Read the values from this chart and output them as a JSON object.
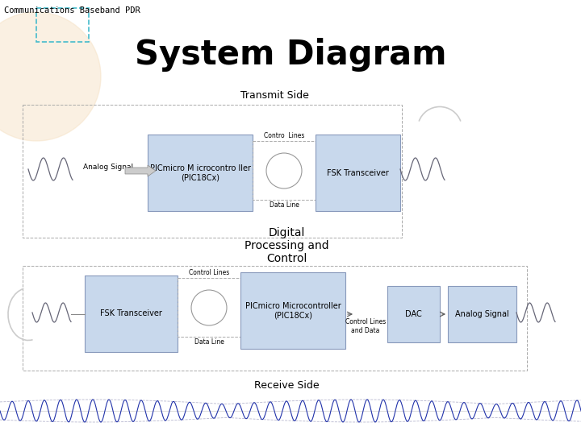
{
  "title": "System Diagram",
  "header_text": "Communications Baseband PDR",
  "bg_color": "#ffffff",
  "box_fill": "#c8d8ec",
  "box_edge": "#8899bb",
  "signal_color": "#2233aa",
  "wave_color": "#aaaacc",
  "transmit_label": "Transmit Side",
  "receive_label": "Receive Side",
  "digital_label": "Digital\nProcessing and\nControl",
  "tx_pic_label": "PICmicro M icrocontro ller\n(PIC18Cx)",
  "tx_fsk_label": "FSK Transceiver",
  "rx_fsk_label": "FSK Transceiver",
  "rx_pic_label": "PICmicro Microcontroller\n(PIC18Cx)",
  "rx_dac_label": "DAC",
  "rx_analog_label": "Analog Signal",
  "control_lines_label": "Contro  Lines",
  "data_line_label": "Data Line",
  "rx_control_lines_label": "Control Lines",
  "rx_data_line_label": "Data Line",
  "rx_ctrl_data_label": "Control Lines\nand Data",
  "analog_signal_label": "Analog Signal"
}
